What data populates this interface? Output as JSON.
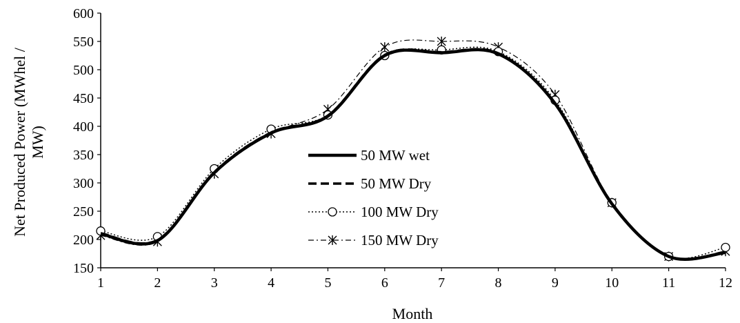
{
  "chart_data": {
    "type": "line",
    "xlabel": "Month",
    "ylabel_line1": "Net Produced Power (MWhel /",
    "ylabel_line2": "MW)",
    "x": [
      1,
      2,
      3,
      4,
      5,
      6,
      7,
      8,
      9,
      10,
      11,
      12
    ],
    "x_tick_labels": [
      "1",
      "2",
      "3",
      "4",
      "5",
      "6",
      "7",
      "8",
      "9",
      "10",
      "11",
      "12"
    ],
    "ylim": [
      150,
      600
    ],
    "y_ticks": [
      150,
      200,
      250,
      300,
      350,
      400,
      450,
      500,
      550,
      600
    ],
    "grid": false,
    "legend_position": "center",
    "series": [
      {
        "name": "50 MW wet",
        "style": "solid-thick",
        "color": "#000000",
        "marker": "none",
        "values": [
          210,
          198,
          318,
          388,
          418,
          525,
          530,
          528,
          440,
          263,
          170,
          177
        ]
      },
      {
        "name": "50 MW Dry",
        "style": "dashed-thick",
        "color": "#000000",
        "marker": "none",
        "values": [
          211,
          199,
          319,
          389,
          419,
          526,
          531,
          529,
          441,
          264,
          170,
          178
        ]
      },
      {
        "name": "100 MW Dry",
        "style": "dotted",
        "color": "#000000",
        "marker": "circle",
        "values": [
          215,
          205,
          325,
          395,
          420,
          525,
          535,
          532,
          446,
          265,
          170,
          186
        ]
      },
      {
        "name": "150 MW Dry",
        "style": "dash-dot",
        "color": "#000000",
        "marker": "star",
        "values": [
          207,
          196,
          316,
          387,
          430,
          540,
          550,
          540,
          456,
          265,
          170,
          179
        ]
      }
    ]
  }
}
